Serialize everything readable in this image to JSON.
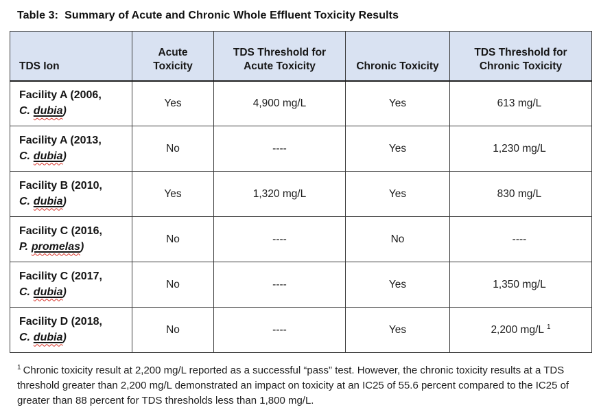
{
  "title": "Table 3:  Summary of Acute and Chronic Whole Effluent Toxicity Results",
  "colors": {
    "header_bg": "#d9e2f2",
    "border": "#3b3b3b",
    "text": "#1a1a1a",
    "spellcheck_red": "#d93025"
  },
  "table": {
    "headers": [
      "TDS Ion",
      "Acute\nToxicity",
      "TDS Threshold for\nAcute Toxicity",
      "Chronic Toxicity",
      "TDS Threshold for\nChronic Toxicity"
    ],
    "rows": [
      {
        "facility_line1": "Facility A (2006,",
        "species_prefix": "C.",
        "species_name": "dubia",
        "species_close": ")",
        "acute": "Yes",
        "acute_threshold": "4,900 mg/L",
        "chronic": "Yes",
        "chronic_threshold": "613 mg/L",
        "chronic_threshold_sup": ""
      },
      {
        "facility_line1": "Facility A (2013,",
        "species_prefix": "C.",
        "species_name": "dubia",
        "species_close": ")",
        "acute": "No",
        "acute_threshold": "----",
        "chronic": "Yes",
        "chronic_threshold": "1,230 mg/L",
        "chronic_threshold_sup": ""
      },
      {
        "facility_line1": "Facility B (2010,",
        "species_prefix": "C.",
        "species_name": "dubia",
        "species_close": ")",
        "acute": "Yes",
        "acute_threshold": "1,320 mg/L",
        "chronic": "Yes",
        "chronic_threshold": "830 mg/L",
        "chronic_threshold_sup": ""
      },
      {
        "facility_line1": "Facility C (2016,",
        "species_prefix": "P.",
        "species_name": "promelas",
        "species_close": ")",
        "acute": "No",
        "acute_threshold": "----",
        "chronic": "No",
        "chronic_threshold": "----",
        "chronic_threshold_sup": ""
      },
      {
        "facility_line1": "Facility C (2017,",
        "species_prefix": "C.",
        "species_name": "dubia",
        "species_close": ")",
        "acute": "No",
        "acute_threshold": "----",
        "chronic": "Yes",
        "chronic_threshold": "1,350 mg/L",
        "chronic_threshold_sup": ""
      },
      {
        "facility_line1": "Facility D (2018,",
        "species_prefix": "C.",
        "species_name": "dubia",
        "species_close": ")",
        "acute": "No",
        "acute_threshold": "----",
        "chronic": "Yes",
        "chronic_threshold": "2,200 mg/L",
        "chronic_threshold_sup": "1"
      }
    ]
  },
  "footnote": {
    "sup": "1",
    "text": "Chronic toxicity result at 2,200 mg/L reported as a successful “pass” test. However, the chronic toxicity results at a TDS threshold greater than 2,200 mg/L demonstrated an impact on toxicity at an IC25 of 55.6 percent compared to the IC25 of greater than 88 percent for TDS thresholds less than 1,800 mg/L."
  }
}
